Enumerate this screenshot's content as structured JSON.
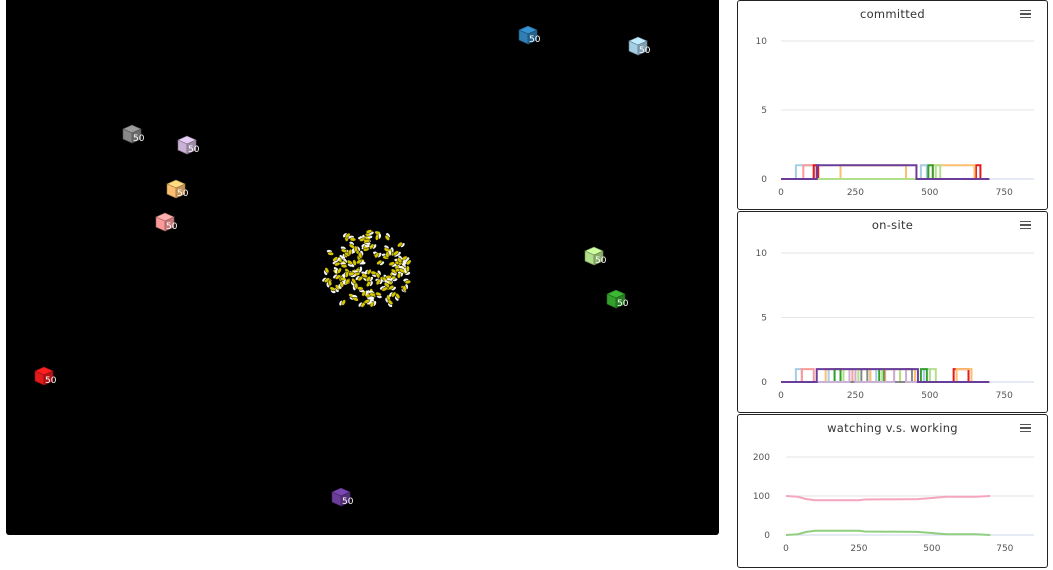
{
  "world": {
    "sites": [
      {
        "id": "site-blue",
        "label": "50",
        "color": "#2f7fb5",
        "icon": "cube-icon"
      },
      {
        "id": "site-lightblue",
        "label": "50",
        "color": "#a6cde6",
        "icon": "cube-icon"
      },
      {
        "id": "site-gray",
        "label": "50",
        "color": "#888888",
        "icon": "cube-icon"
      },
      {
        "id": "site-lavender",
        "label": "50",
        "color": "#cab2d6",
        "icon": "cube-icon"
      },
      {
        "id": "site-peach",
        "label": "50",
        "color": "#fdbf6f",
        "icon": "cube-icon"
      },
      {
        "id": "site-pink",
        "label": "50",
        "color": "#fb9a99",
        "icon": "cube-icon"
      },
      {
        "id": "site-lightgreen",
        "label": "50",
        "color": "#b2df8a",
        "icon": "cube-icon"
      },
      {
        "id": "site-green",
        "label": "50",
        "color": "#33a02c",
        "icon": "cube-icon"
      },
      {
        "id": "site-red",
        "label": "50",
        "color": "#e31a1c",
        "icon": "cube-icon"
      },
      {
        "id": "site-purple",
        "label": "50",
        "color": "#6a3d9a",
        "icon": "cube-icon"
      }
    ],
    "swarm": {
      "icon": "bee-swarm-icon",
      "agent_color": "#d4c400"
    }
  },
  "panels": {
    "committed": {
      "title": "committed",
      "menu_icon": "hamburger-menu-icon",
      "chart_data": {
        "type": "line",
        "title": "committed",
        "xlim": [
          0,
          850
        ],
        "ylim": [
          0,
          10
        ],
        "x_ticks": [
          "0",
          "250",
          "500",
          "750"
        ],
        "y_ticks": [
          "0",
          "5",
          "10"
        ],
        "series": [
          {
            "name": "site-lightblue",
            "color": "#a6cde6",
            "segments": [
              [
                50,
                120
              ],
              [
                470,
                490
              ]
            ]
          },
          {
            "name": "site-pink",
            "color": "#fb9a99",
            "segments": [
              [
                75,
                110
              ]
            ]
          },
          {
            "name": "site-red",
            "color": "#e31a1c",
            "segments": [
              [
                110,
                125
              ],
              [
                655,
                670
              ]
            ]
          },
          {
            "name": "site-peach",
            "color": "#fdbf6f",
            "segments": [
              [
                200,
                420
              ],
              [
                510,
                650
              ]
            ]
          },
          {
            "name": "site-green",
            "color": "#33a02c",
            "segments": [
              [
                495,
                510
              ]
            ]
          },
          {
            "name": "site-lightgreen",
            "color": "#b2df8a",
            "segments": [
              [
                520,
                535
              ]
            ]
          },
          {
            "name": "site-purple",
            "color": "#6a3d9a",
            "segments": [
              [
                120,
                455
              ]
            ]
          }
        ],
        "x_end": 700
      }
    },
    "onsite": {
      "title": "on-site",
      "menu_icon": "hamburger-menu-icon",
      "chart_data": {
        "type": "line",
        "title": "on-site",
        "xlim": [
          0,
          850
        ],
        "ylim": [
          0,
          10
        ],
        "x_ticks": [
          "0",
          "250",
          "500",
          "750"
        ],
        "y_ticks": [
          "0",
          "5",
          "10"
        ],
        "series": [
          {
            "name": "site-lightblue",
            "color": "#a6cde6",
            "segments": [
              [
                50,
                70
              ],
              [
                160,
                180
              ],
              [
                300,
                320
              ],
              [
                480,
                500
              ]
            ]
          },
          {
            "name": "site-pink",
            "color": "#fb9a99",
            "segments": [
              [
                70,
                110
              ],
              [
                200,
                240
              ],
              [
                350,
                380
              ]
            ]
          },
          {
            "name": "site-red",
            "color": "#e31a1c",
            "segments": [
              [
                580,
                630
              ]
            ]
          },
          {
            "name": "site-peach",
            "color": "#fdbf6f",
            "segments": [
              [
                150,
                200
              ],
              [
                250,
                300
              ],
              [
                400,
                450
              ],
              [
                590,
                640
              ]
            ]
          },
          {
            "name": "site-green",
            "color": "#33a02c",
            "segments": [
              [
                180,
                200
              ],
              [
                330,
                345
              ],
              [
                470,
                490
              ]
            ]
          },
          {
            "name": "site-lightgreen",
            "color": "#b2df8a",
            "segments": [
              [
                210,
                260
              ],
              [
                340,
                400
              ],
              [
                500,
                520
              ]
            ]
          },
          {
            "name": "site-gray",
            "color": "#888888",
            "segments": [
              [
                270,
                290
              ],
              [
                420,
                440
              ]
            ]
          },
          {
            "name": "site-lavender",
            "color": "#cab2d6",
            "segments": [
              [
                230,
                250
              ],
              [
                380,
                420
              ]
            ]
          },
          {
            "name": "site-purple",
            "color": "#6a3d9a",
            "segments": [
              [
                120,
                460
              ]
            ]
          }
        ],
        "x_end": 700
      }
    },
    "watching": {
      "title": "watching v.s. working",
      "menu_icon": "hamburger-menu-icon",
      "chart_data": {
        "type": "line",
        "title": "watching v.s. working",
        "xlim": [
          0,
          850
        ],
        "ylim": [
          0,
          200
        ],
        "x_ticks": [
          "0",
          "250",
          "500",
          "750"
        ],
        "y_ticks": [
          "0",
          "100",
          "200"
        ],
        "series": [
          {
            "name": "watching",
            "color": "#f4a6bd",
            "x": [
              0,
              40,
              70,
              100,
              150,
              250,
              270,
              450,
              500,
              550,
              650,
              700
            ],
            "y": [
              100,
              98,
              92,
              89,
              89,
              89,
              91,
              92,
              95,
              98,
              98,
              100
            ]
          },
          {
            "name": "working",
            "color": "#8fcf7f",
            "x": [
              0,
              40,
              70,
              100,
              150,
              250,
              270,
              450,
              500,
              550,
              650,
              700
            ],
            "y": [
              0,
              2,
              8,
              11,
              11,
              11,
              9,
              8,
              5,
              2,
              2,
              0
            ]
          }
        ]
      }
    }
  }
}
